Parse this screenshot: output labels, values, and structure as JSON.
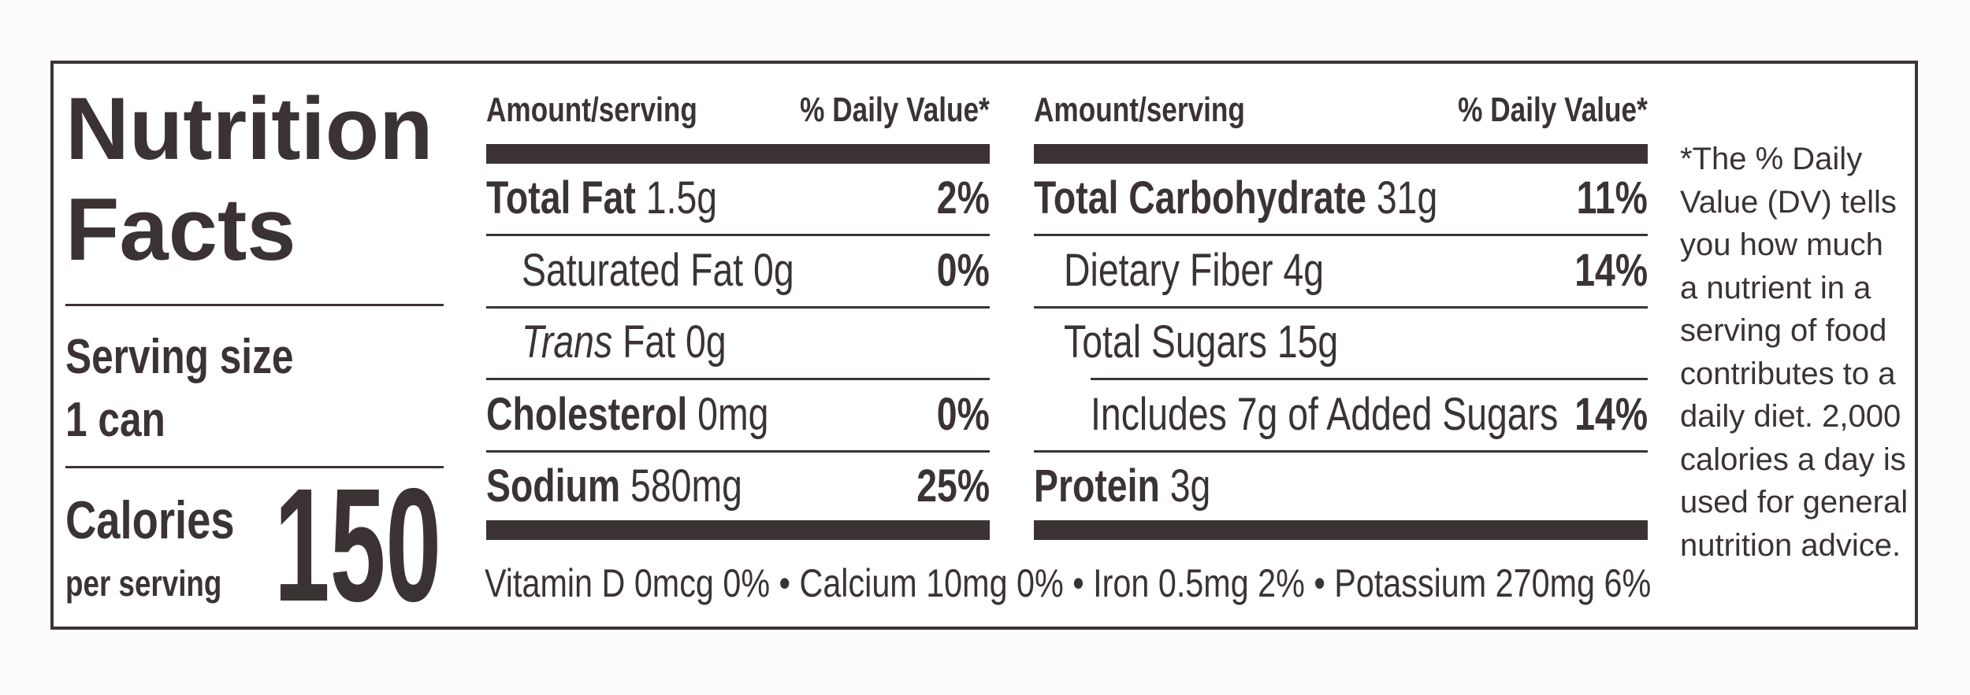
{
  "title": "Nutrition Facts",
  "serving_size": {
    "label": "Serving size",
    "value": "1 can"
  },
  "calories": {
    "label": "Calories",
    "sublabel": "per serving",
    "value": 150
  },
  "columns": [
    {
      "header": {
        "amount": "Amount/serving",
        "dv": "% Daily Value*"
      },
      "rows": [
        {
          "name": "Total Fat",
          "amount": "1.5g",
          "dv": "2%",
          "style": "bold",
          "indent": 0
        },
        {
          "name": "Saturated Fat",
          "amount": "0g",
          "dv": "0%",
          "style": "regular",
          "indent": 1
        },
        {
          "italic": "Trans",
          "name": "Fat",
          "amount": "0g",
          "style": "regular",
          "indent": 1
        },
        {
          "name": "Cholesterol",
          "amount": "0mg",
          "dv": "0%",
          "style": "bold",
          "indent": 0
        },
        {
          "name": "Sodium",
          "amount": "580mg",
          "dv": "25%",
          "style": "bold",
          "indent": 0
        }
      ]
    },
    {
      "header": {
        "amount": "Amount/serving",
        "dv": "% Daily Value*"
      },
      "rows": [
        {
          "name": "Total Carbohydrate",
          "amount": "31g",
          "dv": "11%",
          "style": "bold",
          "indent": 0
        },
        {
          "name": "Dietary Fiber",
          "amount": "4g",
          "dv": "14%",
          "style": "regular",
          "indent": 1
        },
        {
          "name": "Total Sugars",
          "amount": "15g",
          "style": "regular",
          "indent": 1
        },
        {
          "name": "Includes 7g of Added Sugars",
          "dv": "14%",
          "style": "regular",
          "indent": 2
        },
        {
          "name": "Protein",
          "amount": "3g",
          "style": "bold",
          "indent": 0
        }
      ]
    }
  ],
  "vitamins": "Vitamin D 0mcg 0% • Calcium 10mg 0% • Iron 0.5mg 2% • Potassium 270mg 6%",
  "footnote": "*The % Daily Value (DV) tells you how much a nutrient in a serving of food contributes to a daily diet. 2,000 calories a day is used for general nutrition advice."
}
